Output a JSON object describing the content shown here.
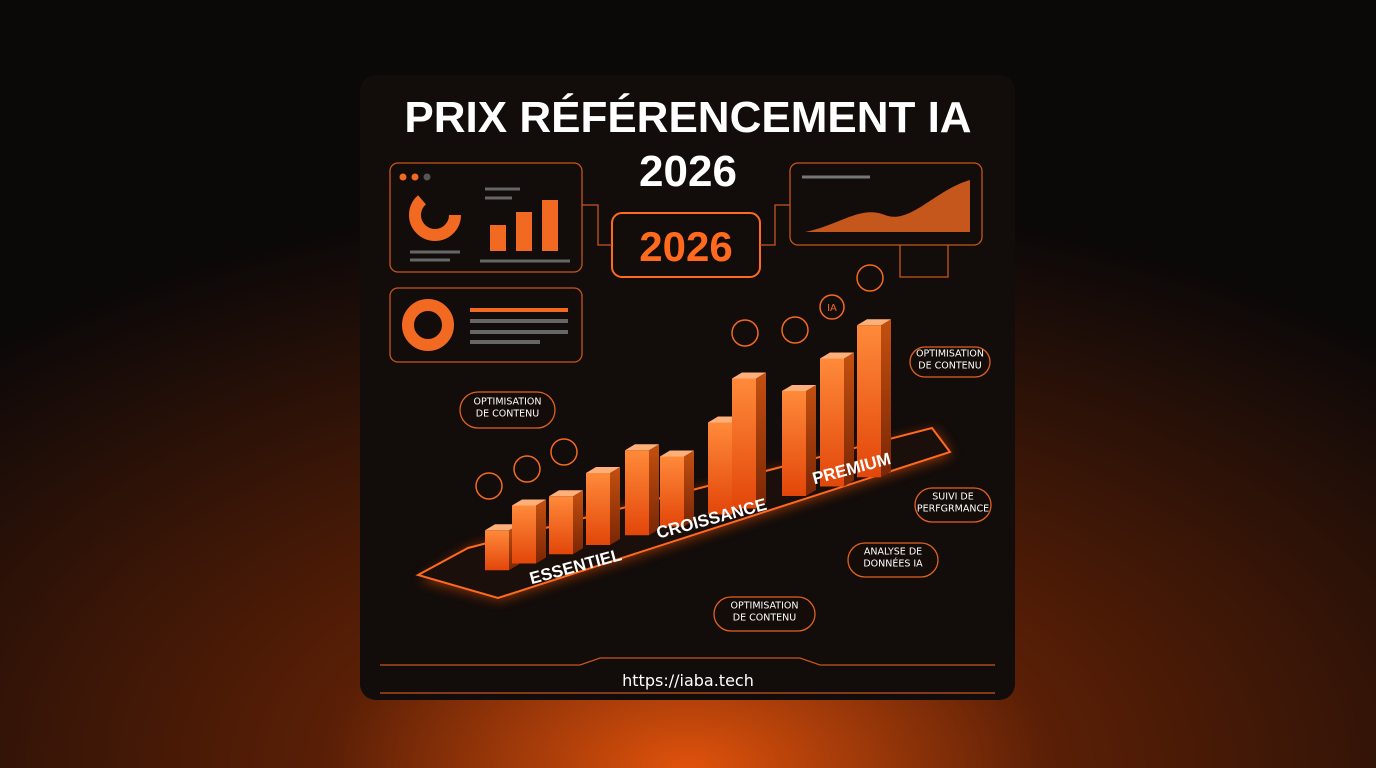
{
  "header": {
    "title_lines": [
      "PRIX RÉFÉRENCEMENT IA",
      "2026"
    ]
  },
  "badge": {
    "label": "2026"
  },
  "icon_badge": {
    "label": "IA"
  },
  "tiers": [
    "ESSENTIEL",
    "CROISSANCE",
    "PREMIUM"
  ],
  "callouts": [
    {
      "lines": [
        "OPTIMISATION",
        "DE CONTENU"
      ]
    },
    {
      "lines": [
        "OPTIMISATION",
        "DE CONTENU"
      ]
    },
    {
      "lines": [
        "SUIVI DE",
        "PERFGRMANCE"
      ]
    },
    {
      "lines": [
        "ANALYSE DE",
        "DONNÉES IA"
      ]
    },
    {
      "lines": [
        "OPTIMISATION",
        "DE CONTENU"
      ]
    }
  ],
  "footer": {
    "url": "https://iaba.tech"
  }
}
